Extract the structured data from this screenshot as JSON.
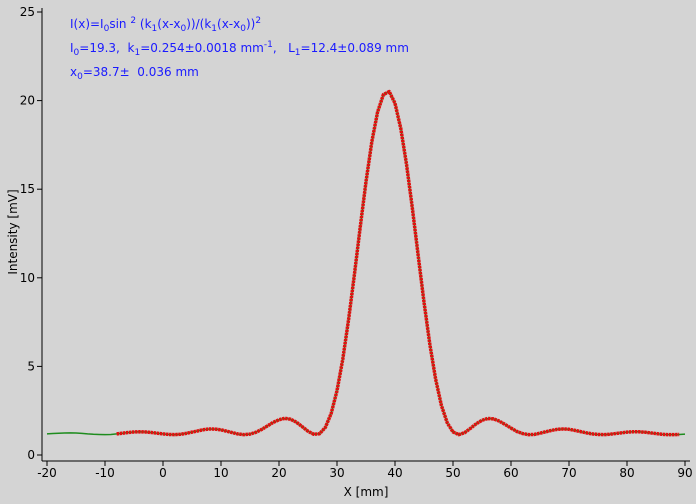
{
  "chart_data": {
    "type": "line",
    "x_label": "X [mm]",
    "y_label": "Intensity [mV]",
    "annotations": [
      [
        "I(x)=I",
        "0",
        "sin ",
        "2",
        " (k",
        "1",
        "(x-x",
        "0",
        "))/(k",
        "1",
        "(x-x",
        "0",
        "))",
        "2"
      ],
      [
        "I",
        "0",
        "=19.3,  k",
        "1",
        "=0.254±0.0018 mm",
        "-1",
        ",   L",
        "1",
        "=12.4±0.089 mm"
      ],
      [
        "x",
        "0",
        "=38.7±  0.036 mm"
      ]
    ],
    "xlim": [
      -20,
      90
    ],
    "xticks": [
      -20,
      -10,
      0,
      10,
      20,
      30,
      40,
      50,
      60,
      70,
      80,
      90
    ],
    "ylim": [
      0,
      25
    ],
    "yticks": [
      0,
      5,
      10,
      15,
      20,
      25
    ],
    "series": [
      {
        "color": "#1e8c1e",
        "x": [
          -20,
          -19,
          -18,
          -17,
          -16,
          -15,
          -14,
          -13,
          -12,
          -11,
          -10,
          -9,
          -8,
          -7,
          -6,
          -5,
          -4,
          -3,
          -2,
          -1,
          0,
          1,
          2,
          3,
          4,
          5,
          6,
          7,
          8,
          9,
          10,
          11,
          12,
          13,
          14,
          15,
          16,
          17,
          18,
          19,
          20,
          21,
          22,
          23,
          24,
          25,
          26,
          27,
          28,
          29,
          30,
          31,
          32,
          33,
          34,
          35,
          36,
          37,
          38,
          39,
          40,
          41,
          42,
          43,
          44,
          45,
          46,
          47,
          48,
          49,
          50,
          51,
          52,
          53,
          54,
          55,
          56,
          57,
          58,
          59,
          60,
          61,
          62,
          63,
          64,
          65,
          66,
          67,
          68,
          69,
          70,
          71,
          72,
          73,
          74,
          75,
          76,
          77,
          78,
          79,
          80,
          81,
          82,
          83,
          84,
          85,
          86,
          87,
          88,
          89,
          90
        ],
        "values": [
          1.19,
          1.21,
          1.23,
          1.24,
          1.25,
          1.24,
          1.22,
          1.19,
          1.17,
          1.16,
          1.15,
          1.16,
          1.19,
          1.23,
          1.27,
          1.3,
          1.31,
          1.3,
          1.27,
          1.23,
          1.19,
          1.16,
          1.15,
          1.17,
          1.22,
          1.29,
          1.36,
          1.43,
          1.47,
          1.46,
          1.42,
          1.34,
          1.26,
          1.18,
          1.15,
          1.18,
          1.28,
          1.44,
          1.64,
          1.84,
          1.99,
          2.07,
          2.02,
          1.85,
          1.6,
          1.34,
          1.17,
          1.2,
          1.56,
          2.35,
          3.63,
          5.41,
          7.65,
          10.18,
          12.85,
          15.42,
          17.67,
          19.36,
          20.34,
          20.51,
          19.85,
          18.42,
          16.37,
          13.91,
          11.25,
          8.63,
          6.26,
          4.29,
          2.8,
          1.82,
          1.3,
          1.15,
          1.26,
          1.5,
          1.76,
          1.96,
          2.06,
          2.04,
          1.91,
          1.72,
          1.52,
          1.33,
          1.21,
          1.15,
          1.16,
          1.23,
          1.31,
          1.39,
          1.45,
          1.47,
          1.45,
          1.39,
          1.32,
          1.25,
          1.19,
          1.16,
          1.15,
          1.17,
          1.21,
          1.25,
          1.29,
          1.31,
          1.31,
          1.29,
          1.25,
          1.21,
          1.17,
          1.15,
          1.15,
          1.16,
          1.18
        ]
      },
      {
        "color": "#e01010",
        "x": [
          -8,
          -7,
          -6,
          -5,
          -4,
          -3,
          -2,
          -1,
          0,
          1,
          2,
          3,
          4,
          5,
          6,
          7,
          8,
          9,
          10,
          11,
          12,
          13,
          14,
          15,
          16,
          17,
          18,
          19,
          20,
          21,
          22,
          23,
          24,
          25,
          26,
          27,
          28,
          29,
          30,
          31,
          32,
          33,
          34,
          35,
          36,
          37,
          38,
          39,
          40,
          41,
          42,
          43,
          44,
          45,
          46,
          47,
          48,
          49,
          50,
          51,
          52,
          53,
          54,
          55,
          56,
          57,
          58,
          59,
          60,
          61,
          62,
          63,
          64,
          65,
          66,
          67,
          68,
          69,
          70,
          71,
          72,
          73,
          74,
          75,
          76,
          77,
          78,
          79,
          80,
          81,
          82,
          83,
          84,
          85,
          86,
          87,
          88,
          89
        ],
        "values": [
          1.19,
          1.23,
          1.27,
          1.3,
          1.31,
          1.3,
          1.27,
          1.23,
          1.19,
          1.16,
          1.15,
          1.17,
          1.22,
          1.29,
          1.36,
          1.43,
          1.47,
          1.46,
          1.42,
          1.34,
          1.26,
          1.18,
          1.15,
          1.18,
          1.28,
          1.44,
          1.64,
          1.84,
          1.99,
          2.07,
          2.02,
          1.85,
          1.6,
          1.34,
          1.17,
          1.2,
          1.56,
          2.35,
          3.63,
          5.41,
          7.65,
          10.18,
          12.85,
          15.42,
          17.67,
          19.36,
          20.34,
          20.51,
          19.85,
          18.42,
          16.37,
          13.91,
          11.25,
          8.63,
          6.26,
          4.29,
          2.8,
          1.82,
          1.3,
          1.15,
          1.26,
          1.5,
          1.76,
          1.96,
          2.06,
          2.04,
          1.91,
          1.72,
          1.52,
          1.33,
          1.21,
          1.15,
          1.16,
          1.23,
          1.31,
          1.39,
          1.45,
          1.47,
          1.45,
          1.39,
          1.32,
          1.25,
          1.19,
          1.16,
          1.15,
          1.17,
          1.21,
          1.25,
          1.29,
          1.31,
          1.31,
          1.29,
          1.25,
          1.21,
          1.17,
          1.15,
          1.15,
          1.16
        ]
      }
    ]
  }
}
